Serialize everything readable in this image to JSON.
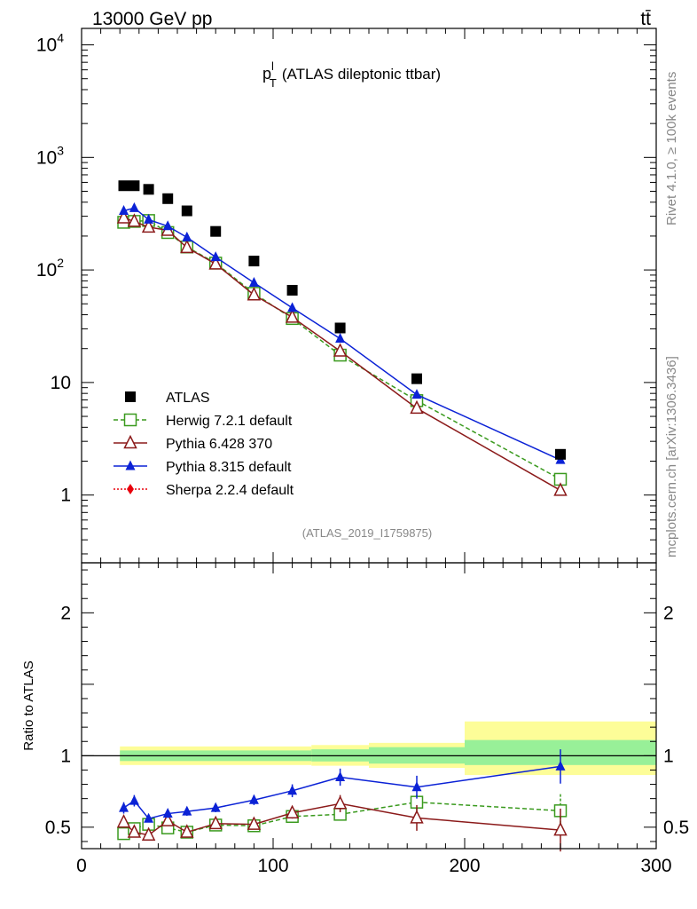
{
  "header": {
    "left": "13000 GeV pp",
    "right": "tt̄",
    "side_top": "Rivet 4.1.0, ≥ 100k events",
    "side_bottom": "mcplots.cern.ch [arXiv:1306.3436]"
  },
  "chart_data": {
    "type": "line",
    "title_main": "p",
    "title_sup": "l",
    "title_sub": "T",
    "title_rest": "(ATLAS dileptonic ttbar)",
    "analysis_id": "(ATLAS_2019_I1759875)",
    "xlim": [
      0,
      300
    ],
    "ylim_main": [
      0.25,
      14000
    ],
    "yscale_main": "log",
    "ylim_ratio": [
      0.35,
      2.35
    ],
    "ratio_ylabel": "Ratio to ATLAS",
    "x_tick_labels": [
      "0",
      "100",
      "200",
      "300"
    ],
    "x_ticks": [
      0,
      100,
      200,
      300
    ],
    "main_tick_labels": [
      {
        "value": 1,
        "base": "1",
        "exp": ""
      },
      {
        "value": 10,
        "base": "10",
        "exp": ""
      },
      {
        "value": 100,
        "base": "10",
        "exp": "2"
      },
      {
        "value": 1000,
        "base": "10",
        "exp": "3"
      },
      {
        "value": 10000,
        "base": "10",
        "exp": "4"
      }
    ],
    "ratio_tick_labels": [
      {
        "value": 0.5,
        "label": "0.5"
      },
      {
        "value": 1,
        "label": "1"
      },
      {
        "value": 2,
        "label": "2"
      }
    ],
    "data": {
      "name": "ATLAS",
      "color": "#000000",
      "x": [
        22,
        27.5,
        35,
        45,
        55,
        70,
        90,
        110,
        135,
        175,
        250
      ],
      "y": [
        560,
        560,
        520,
        430,
        335,
        220,
        120,
        66,
        30.5,
        10.8,
        2.3
      ],
      "ratio_bands": [
        {
          "x0": 20,
          "x1": 120,
          "inner": [
            0.963,
            1.037
          ],
          "outer": [
            0.935,
            1.065
          ]
        },
        {
          "x0": 120,
          "x1": 150,
          "inner": [
            0.96,
            1.045
          ],
          "outer": [
            0.93,
            1.075
          ]
        },
        {
          "x0": 150,
          "x1": 200,
          "inner": [
            0.945,
            1.06
          ],
          "outer": [
            0.915,
            1.09
          ]
        },
        {
          "x0": 200,
          "x1": 300,
          "inner": [
            0.935,
            1.11
          ],
          "outer": [
            0.865,
            1.24
          ]
        }
      ]
    },
    "series": [
      {
        "name": "Herwig 7.2.1 default",
        "color": "#3a9a1e",
        "dash": "5,3",
        "marker": "open-square",
        "x": [
          22,
          27.5,
          35,
          45,
          55,
          70,
          90,
          110,
          135,
          175,
          250
        ],
        "y": [
          265,
          270,
          275,
          215,
          160,
          115,
          62,
          37,
          17.5,
          6.9,
          1.38
        ],
        "ratio": [
          0.455,
          0.49,
          0.52,
          0.495,
          0.465,
          0.515,
          0.51,
          0.575,
          0.59,
          0.675,
          0.615
        ],
        "ratio_err": [
          0.03,
          0.03,
          0.02,
          0.025,
          0.02,
          0.02,
          0.03,
          0.03,
          0.04,
          0.06,
          0.12
        ]
      },
      {
        "name": "Pythia 6.428 370",
        "color": "#8b1a1a",
        "dash": "",
        "marker": "open-triangle",
        "x": [
          22,
          27.5,
          35,
          45,
          55,
          70,
          90,
          110,
          135,
          175,
          250
        ],
        "y": [
          290,
          270,
          240,
          225,
          158,
          113,
          60,
          38,
          19,
          5.9,
          1.1
        ],
        "ratio": [
          0.535,
          0.465,
          0.445,
          0.545,
          0.465,
          0.525,
          0.52,
          0.6,
          0.665,
          0.565,
          0.48
        ],
        "ratio_err": [
          0.035,
          0.035,
          0.02,
          0.03,
          0.02,
          0.02,
          0.03,
          0.04,
          0.06,
          0.09,
          0.15
        ]
      },
      {
        "name": "Pythia 8.315 default",
        "color": "#0b22d6",
        "dash": "",
        "marker": "filled-triangle",
        "x": [
          22,
          27.5,
          35,
          45,
          55,
          70,
          90,
          110,
          135,
          175,
          250
        ],
        "y": [
          335,
          355,
          280,
          245,
          195,
          130,
          77,
          46,
          24.5,
          7.8,
          2.05
        ],
        "ratio": [
          0.635,
          0.685,
          0.56,
          0.595,
          0.61,
          0.635,
          0.69,
          0.755,
          0.85,
          0.78,
          0.925
        ],
        "ratio_err": [
          0.04,
          0.04,
          0.02,
          0.03,
          0.03,
          0.03,
          0.035,
          0.045,
          0.06,
          0.08,
          0.12
        ]
      },
      {
        "name": "Sherpa 2.2.4 default",
        "color": "#e8000b",
        "dash": "2,2",
        "marker": "filled-diamond",
        "x": [],
        "y": [],
        "ratio": [],
        "ratio_err": []
      }
    ]
  }
}
